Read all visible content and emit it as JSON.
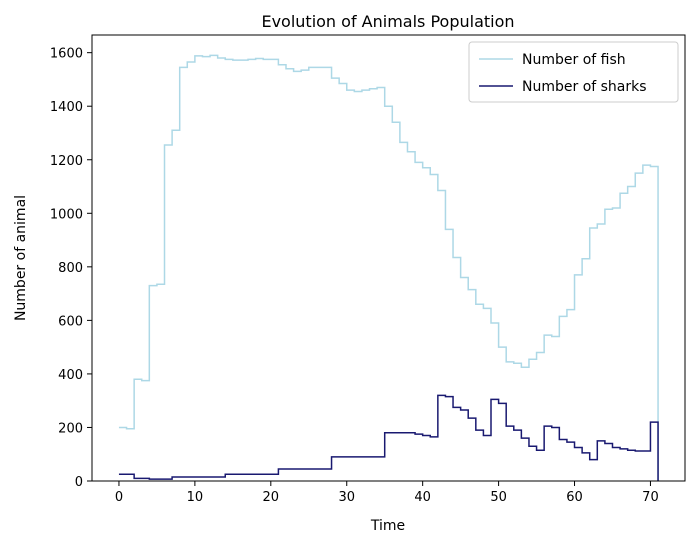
{
  "chart_data": {
    "type": "line",
    "drawstyle": "steps-post",
    "title": "Evolution of Animals Population",
    "xlabel": "Time",
    "ylabel": "Number of animal",
    "xlim": [
      -3.55,
      74.55
    ],
    "ylim": [
      0,
      1666
    ],
    "xticks": [
      0,
      10,
      20,
      30,
      40,
      50,
      60,
      70
    ],
    "yticks": [
      0,
      200,
      400,
      600,
      800,
      1000,
      1200,
      1400,
      1600
    ],
    "grid": false,
    "legend_position": "top-right",
    "x": [
      0,
      1,
      2,
      3,
      4,
      5,
      6,
      7,
      8,
      9,
      10,
      11,
      12,
      13,
      14,
      15,
      16,
      17,
      18,
      19,
      20,
      21,
      22,
      23,
      24,
      25,
      26,
      27,
      28,
      29,
      30,
      31,
      32,
      33,
      34,
      35,
      36,
      37,
      38,
      39,
      40,
      41,
      42,
      43,
      44,
      45,
      46,
      47,
      48,
      49,
      50,
      51,
      52,
      53,
      54,
      55,
      56,
      57,
      58,
      59,
      60,
      61,
      62,
      63,
      64,
      65,
      66,
      67,
      68,
      69,
      70,
      71
    ],
    "series": [
      {
        "name": "Number of fish",
        "color": "#add8e6",
        "values": [
          200,
          195,
          380,
          375,
          730,
          735,
          1255,
          1310,
          1545,
          1565,
          1588,
          1585,
          1590,
          1580,
          1575,
          1572,
          1572,
          1575,
          1578,
          1575,
          1575,
          1555,
          1540,
          1530,
          1535,
          1545,
          1545,
          1545,
          1505,
          1485,
          1460,
          1455,
          1460,
          1465,
          1470,
          1400,
          1340,
          1265,
          1230,
          1190,
          1170,
          1145,
          1085,
          940,
          835,
          760,
          715,
          660,
          645,
          590,
          500,
          445,
          440,
          425,
          455,
          480,
          545,
          540,
          615,
          640,
          770,
          830,
          945,
          960,
          1015,
          1020,
          1075,
          1100,
          1150,
          1180,
          1175,
          0
        ]
      },
      {
        "name": "Number of sharks",
        "color": "#191970",
        "values": [
          25,
          25,
          10,
          10,
          7,
          7,
          7,
          15,
          15,
          15,
          15,
          15,
          15,
          15,
          25,
          25,
          25,
          25,
          25,
          25,
          25,
          45,
          45,
          45,
          45,
          45,
          45,
          45,
          90,
          90,
          90,
          90,
          90,
          90,
          90,
          180,
          180,
          180,
          180,
          175,
          170,
          165,
          320,
          315,
          275,
          265,
          235,
          190,
          170,
          305,
          290,
          205,
          190,
          160,
          130,
          115,
          205,
          200,
          155,
          145,
          125,
          105,
          80,
          150,
          140,
          125,
          120,
          115,
          112,
          112,
          220,
          0
        ]
      }
    ]
  }
}
